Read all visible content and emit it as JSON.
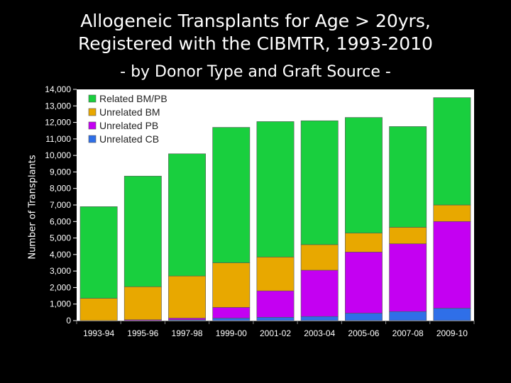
{
  "title_line1": "Allogeneic Transplants for Age > 20yrs,",
  "title_line2": "Registered with the CIBMTR, 1993-2010",
  "subtitle": "- by Donor Type and Graft Source -",
  "chart_data": {
    "type": "bar",
    "stacked": true,
    "ylabel": "Number of Transplants",
    "xlabel": "",
    "ylim": [
      0,
      14000
    ],
    "yticks": [
      0,
      1000,
      2000,
      3000,
      4000,
      5000,
      6000,
      7000,
      8000,
      9000,
      10000,
      11000,
      12000,
      13000,
      14000
    ],
    "ytick_labels": [
      "0",
      "1,000",
      "2,000",
      "3,000",
      "4,000",
      "5,000",
      "6,000",
      "7,000",
      "8,000",
      "9,000",
      "10,000",
      "11,000",
      "12,000",
      "13,000",
      "14,000"
    ],
    "categories": [
      "1993-94",
      "1995-96",
      "1997-98",
      "1999-00",
      "2001-02",
      "2003-04",
      "2005-06",
      "2007-08",
      "2009-10"
    ],
    "legend_position": "top-left",
    "series": [
      {
        "name": "Unrelated CB",
        "color": "#2f6fe8",
        "values": [
          0,
          0,
          50,
          150,
          200,
          250,
          450,
          550,
          750
        ]
      },
      {
        "name": "Unrelated PB",
        "color": "#c400f2",
        "values": [
          0,
          50,
          100,
          650,
          1600,
          2800,
          3700,
          4100,
          5250
        ]
      },
      {
        "name": "Unrelated BM",
        "color": "#e8a800",
        "values": [
          1350,
          2000,
          2550,
          2700,
          2050,
          1550,
          1150,
          1000,
          1000
        ]
      },
      {
        "name": "Related BM/PB",
        "color": "#19cf3e",
        "values": [
          5550,
          6700,
          7400,
          8200,
          8200,
          7500,
          7000,
          6100,
          6500
        ]
      }
    ],
    "legend_order": [
      "Related BM/PB",
      "Unrelated BM",
      "Unrelated PB",
      "Unrelated CB"
    ]
  }
}
